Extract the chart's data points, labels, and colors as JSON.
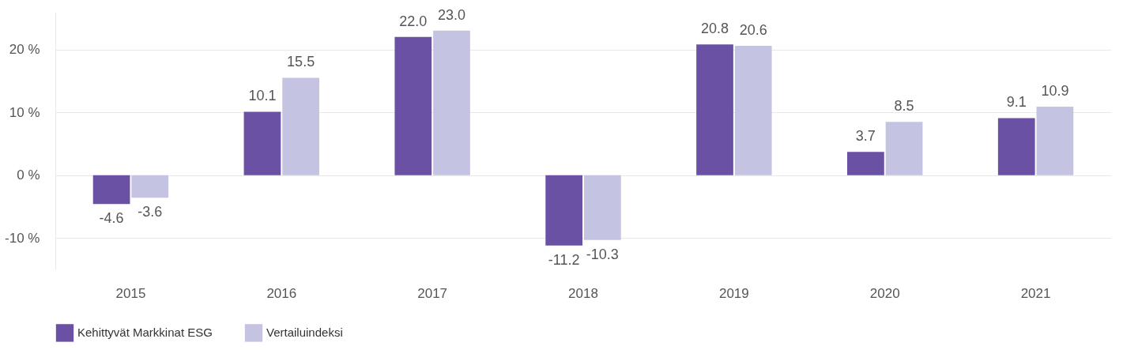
{
  "chart_data": {
    "type": "bar",
    "categories": [
      "2015",
      "2016",
      "2017",
      "2018",
      "2019",
      "2020",
      "2021"
    ],
    "series": [
      {
        "name": "Kehittyvät Markkinat ESG",
        "color": "#6a51a3",
        "values": [
          -4.6,
          10.1,
          22.0,
          -11.2,
          20.8,
          3.7,
          9.1
        ],
        "value_labels": [
          "-4.6",
          "10.1",
          "22.0",
          "-11.2",
          "20.8",
          "3.7",
          "9.1"
        ]
      },
      {
        "name": "Vertailuindeksi",
        "color": "#c5c3e2",
        "values": [
          -3.6,
          15.5,
          23.0,
          -10.3,
          20.6,
          8.5,
          10.9
        ],
        "value_labels": [
          "-3.6",
          "15.5",
          "23.0",
          "-10.3",
          "20.6",
          "8.5",
          "10.9"
        ]
      }
    ],
    "ylim": [
      -15,
      26
    ],
    "yticks": [
      {
        "value": -10,
        "label": "-10 %"
      },
      {
        "value": 0,
        "label": "0 %"
      },
      {
        "value": 10,
        "label": "10 %"
      },
      {
        "value": 20,
        "label": "20 %"
      }
    ],
    "grid": "y",
    "legend": "bottom left"
  }
}
